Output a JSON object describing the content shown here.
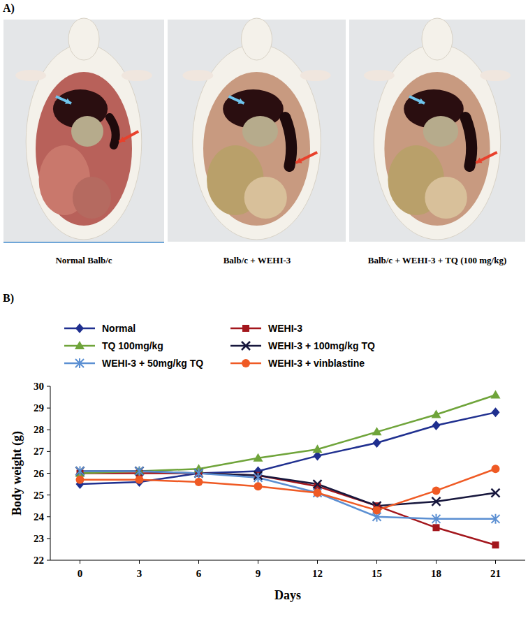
{
  "figure": {
    "panels": [
      {
        "label": "A)",
        "captions": [
          "Normal Balb/c",
          "Balb/c + WEHI-3",
          "Balb/c + WEHI-3 + TQ (100 mg/kg)"
        ]
      },
      {
        "label": "B)"
      }
    ]
  },
  "chart_data": {
    "type": "line",
    "y_label": "Body weight (g)",
    "x_label": "Days",
    "categories": [
      "0",
      "3",
      "6",
      "9",
      "12",
      "15",
      "18",
      "21"
    ],
    "ylim": [
      22,
      30
    ],
    "yticks": [
      22,
      23,
      24,
      25,
      26,
      27,
      28,
      29,
      30
    ],
    "grid": false,
    "legend": "top",
    "series": [
      {
        "name": "Normal",
        "color": "#1f2f8f",
        "marker": "diamond",
        "values": [
          25.5,
          25.6,
          26.0,
          26.1,
          26.8,
          27.4,
          28.2,
          28.8
        ]
      },
      {
        "name": "WEHI-3",
        "color": "#a3161c",
        "marker": "square",
        "values": [
          26.0,
          26.0,
          26.0,
          25.9,
          25.4,
          24.5,
          23.5,
          22.7
        ]
      },
      {
        "name": "TQ 100mg/kg",
        "color": "#6fa43a",
        "marker": "triangle",
        "values": [
          26.0,
          26.1,
          26.2,
          26.7,
          27.1,
          27.9,
          28.7,
          29.6
        ]
      },
      {
        "name": "WEHI-3 + 100mg/kg TQ",
        "color": "#17173d",
        "marker": "x",
        "values": [
          26.1,
          26.1,
          26.0,
          25.9,
          25.5,
          24.5,
          24.7,
          25.1
        ]
      },
      {
        "name": "WEHI-3 + 50mg/kg TQ",
        "color": "#5b8fd2",
        "marker": "asterisk",
        "values": [
          26.1,
          26.1,
          26.0,
          25.8,
          25.1,
          24.0,
          23.9,
          23.9
        ]
      },
      {
        "name": "WEHI-3 + vinblastine",
        "color": "#ef5a24",
        "marker": "circle",
        "values": [
          25.7,
          25.7,
          25.6,
          25.4,
          25.1,
          24.3,
          25.2,
          26.2
        ]
      }
    ]
  }
}
